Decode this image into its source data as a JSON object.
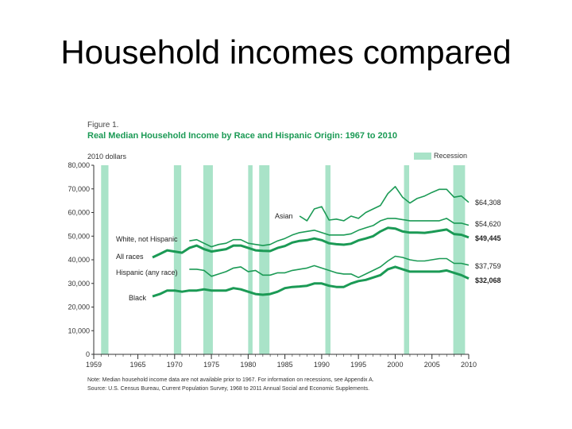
{
  "slide": {
    "title": "Household incomes compared"
  },
  "figure": {
    "label": "Figure 1.",
    "title": "Real Median Household Income by Race and Hispanic Origin: 1967 to 2010",
    "units": "2010 dollars",
    "legend_recession": "Recession",
    "note": "Note: Median household income data are not available prior to 1967. For information on recessions, see Appendix A.",
    "source": "Source: U.S. Census Bureau, Current Population Survey, 1968 to 2011 Annual Social and Economic Supplements."
  },
  "colors": {
    "line": "#1b9a55",
    "recession": "#a9e3c8",
    "axis": "#333333"
  },
  "chart_data": {
    "type": "line",
    "xlim": [
      1959,
      2010
    ],
    "ylim": [
      0,
      80000
    ],
    "x_ticks": [
      "1959",
      "1965",
      "1970",
      "1975",
      "1980",
      "1985",
      "1990",
      "1995",
      "2000",
      "2005",
      "2010"
    ],
    "x_tick_values": [
      1959,
      1965,
      1970,
      1975,
      1980,
      1985,
      1990,
      1995,
      2000,
      2005,
      2010
    ],
    "y_ticks": [
      "0",
      "10,000",
      "20,000",
      "30,000",
      "40,000",
      "50,000",
      "60,000",
      "70,000",
      "80,000"
    ],
    "y_tick_values": [
      0,
      10000,
      20000,
      30000,
      40000,
      50000,
      60000,
      70000,
      80000
    ],
    "recessions": [
      [
        1960,
        1961
      ],
      [
        1969.9,
        1970.9
      ],
      [
        1973.9,
        1975.2
      ],
      [
        1980,
        1980.6
      ],
      [
        1981.5,
        1982.9
      ],
      [
        1990.5,
        1991.2
      ],
      [
        2001.2,
        2001.9
      ],
      [
        2007.9,
        2009.5
      ]
    ],
    "series": [
      {
        "name": "Asian",
        "end_label": "$64,308",
        "bold": false,
        "points": [
          [
            1987,
            58500
          ],
          [
            1988,
            56500
          ],
          [
            1989,
            61500
          ],
          [
            1990,
            62500
          ],
          [
            1991,
            56800
          ],
          [
            1992,
            57200
          ],
          [
            1993,
            56500
          ],
          [
            1994,
            58500
          ],
          [
            1995,
            57500
          ],
          [
            1996,
            60000
          ],
          [
            1997,
            61500
          ],
          [
            1998,
            63000
          ],
          [
            1999,
            68000
          ],
          [
            2000,
            71000
          ],
          [
            2001,
            66500
          ],
          [
            2002,
            64000
          ],
          [
            2003,
            66000
          ],
          [
            2004,
            67000
          ],
          [
            2005,
            68500
          ],
          [
            2006,
            69800
          ],
          [
            2007,
            69800
          ],
          [
            2008,
            66500
          ],
          [
            2009,
            67000
          ],
          [
            2010,
            64308
          ]
        ]
      },
      {
        "name": "White, not Hispanic",
        "end_label": "$54,620",
        "bold": false,
        "points": [
          [
            1972,
            48000
          ],
          [
            1973,
            48500
          ],
          [
            1974,
            47000
          ],
          [
            1975,
            45500
          ],
          [
            1976,
            46500
          ],
          [
            1977,
            47000
          ],
          [
            1978,
            48500
          ],
          [
            1979,
            48500
          ],
          [
            1980,
            47000
          ],
          [
            1981,
            46500
          ],
          [
            1982,
            46000
          ],
          [
            1983,
            46500
          ],
          [
            1984,
            48000
          ],
          [
            1985,
            49000
          ],
          [
            1986,
            50500
          ],
          [
            1987,
            51500
          ],
          [
            1988,
            52000
          ],
          [
            1989,
            52500
          ],
          [
            1990,
            51500
          ],
          [
            1991,
            50500
          ],
          [
            1992,
            50500
          ],
          [
            1993,
            50500
          ],
          [
            1994,
            51000
          ],
          [
            1995,
            52500
          ],
          [
            1996,
            53500
          ],
          [
            1997,
            54500
          ],
          [
            1998,
            56500
          ],
          [
            1999,
            57500
          ],
          [
            2000,
            57500
          ],
          [
            2001,
            57000
          ],
          [
            2002,
            56500
          ],
          [
            2003,
            56500
          ],
          [
            2004,
            56500
          ],
          [
            2005,
            56500
          ],
          [
            2006,
            56500
          ],
          [
            2007,
            57500
          ],
          [
            2008,
            55500
          ],
          [
            2009,
            55500
          ],
          [
            2010,
            54620
          ]
        ]
      },
      {
        "name": "All races",
        "end_label": "$49,445",
        "bold": true,
        "points": [
          [
            1967,
            41000
          ],
          [
            1968,
            42500
          ],
          [
            1969,
            44000
          ],
          [
            1970,
            43500
          ],
          [
            1971,
            43000
          ],
          [
            1972,
            45000
          ],
          [
            1973,
            46000
          ],
          [
            1974,
            44500
          ],
          [
            1975,
            43500
          ],
          [
            1976,
            44000
          ],
          [
            1977,
            44500
          ],
          [
            1978,
            46000
          ],
          [
            1979,
            46000
          ],
          [
            1980,
            45000
          ],
          [
            1981,
            44000
          ],
          [
            1982,
            43800
          ],
          [
            1983,
            43700
          ],
          [
            1984,
            45000
          ],
          [
            1985,
            45800
          ],
          [
            1986,
            47300
          ],
          [
            1987,
            48000
          ],
          [
            1988,
            48300
          ],
          [
            1989,
            49000
          ],
          [
            1990,
            48300
          ],
          [
            1991,
            47000
          ],
          [
            1992,
            46600
          ],
          [
            1993,
            46400
          ],
          [
            1994,
            46800
          ],
          [
            1995,
            48200
          ],
          [
            1996,
            49000
          ],
          [
            1997,
            50000
          ],
          [
            1998,
            52000
          ],
          [
            1999,
            53500
          ],
          [
            2000,
            53200
          ],
          [
            2001,
            52000
          ],
          [
            2002,
            51500
          ],
          [
            2003,
            51500
          ],
          [
            2004,
            51400
          ],
          [
            2005,
            51800
          ],
          [
            2006,
            52300
          ],
          [
            2007,
            52800
          ],
          [
            2008,
            50900
          ],
          [
            2009,
            50600
          ],
          [
            2010,
            49445
          ]
        ]
      },
      {
        "name": "Hispanic (any race)",
        "end_label": "$37,759",
        "bold": false,
        "points": [
          [
            1972,
            36000
          ],
          [
            1973,
            36000
          ],
          [
            1974,
            35500
          ],
          [
            1975,
            33000
          ],
          [
            1976,
            34000
          ],
          [
            1977,
            35000
          ],
          [
            1978,
            36500
          ],
          [
            1979,
            37000
          ],
          [
            1980,
            35000
          ],
          [
            1981,
            35500
          ],
          [
            1982,
            33500
          ],
          [
            1983,
            33500
          ],
          [
            1984,
            34500
          ],
          [
            1985,
            34500
          ],
          [
            1986,
            35500
          ],
          [
            1987,
            36000
          ],
          [
            1988,
            36500
          ],
          [
            1989,
            37500
          ],
          [
            1990,
            36500
          ],
          [
            1991,
            35500
          ],
          [
            1992,
            34500
          ],
          [
            1993,
            34000
          ],
          [
            1994,
            34000
          ],
          [
            1995,
            32500
          ],
          [
            1996,
            34000
          ],
          [
            1997,
            35500
          ],
          [
            1998,
            37000
          ],
          [
            1999,
            39500
          ],
          [
            2000,
            41500
          ],
          [
            2001,
            41000
          ],
          [
            2002,
            40000
          ],
          [
            2003,
            39500
          ],
          [
            2004,
            39500
          ],
          [
            2005,
            40000
          ],
          [
            2006,
            40500
          ],
          [
            2007,
            40500
          ],
          [
            2008,
            38500
          ],
          [
            2009,
            38500
          ],
          [
            2010,
            37759
          ]
        ]
      },
      {
        "name": "Black",
        "end_label": "$32,068",
        "bold": true,
        "points": [
          [
            1967,
            24500
          ],
          [
            1968,
            25500
          ],
          [
            1969,
            27000
          ],
          [
            1970,
            27000
          ],
          [
            1971,
            26500
          ],
          [
            1972,
            27000
          ],
          [
            1973,
            27000
          ],
          [
            1974,
            27500
          ],
          [
            1975,
            27000
          ],
          [
            1976,
            27000
          ],
          [
            1977,
            27000
          ],
          [
            1978,
            28000
          ],
          [
            1979,
            27500
          ],
          [
            1980,
            26500
          ],
          [
            1981,
            25500
          ],
          [
            1982,
            25200
          ],
          [
            1983,
            25500
          ],
          [
            1984,
            26500
          ],
          [
            1985,
            28000
          ],
          [
            1986,
            28500
          ],
          [
            1987,
            28700
          ],
          [
            1988,
            29000
          ],
          [
            1989,
            30000
          ],
          [
            1990,
            30000
          ],
          [
            1991,
            29000
          ],
          [
            1992,
            28500
          ],
          [
            1993,
            28500
          ],
          [
            1994,
            30000
          ],
          [
            1995,
            31000
          ],
          [
            1996,
            31500
          ],
          [
            1997,
            32500
          ],
          [
            1998,
            33500
          ],
          [
            1999,
            36000
          ],
          [
            2000,
            37000
          ],
          [
            2001,
            36000
          ],
          [
            2002,
            35000
          ],
          [
            2003,
            35000
          ],
          [
            2004,
            35000
          ],
          [
            2005,
            35000
          ],
          [
            2006,
            35000
          ],
          [
            2007,
            35500
          ],
          [
            2008,
            34500
          ],
          [
            2009,
            33500
          ],
          [
            2010,
            32068
          ]
        ]
      }
    ]
  }
}
